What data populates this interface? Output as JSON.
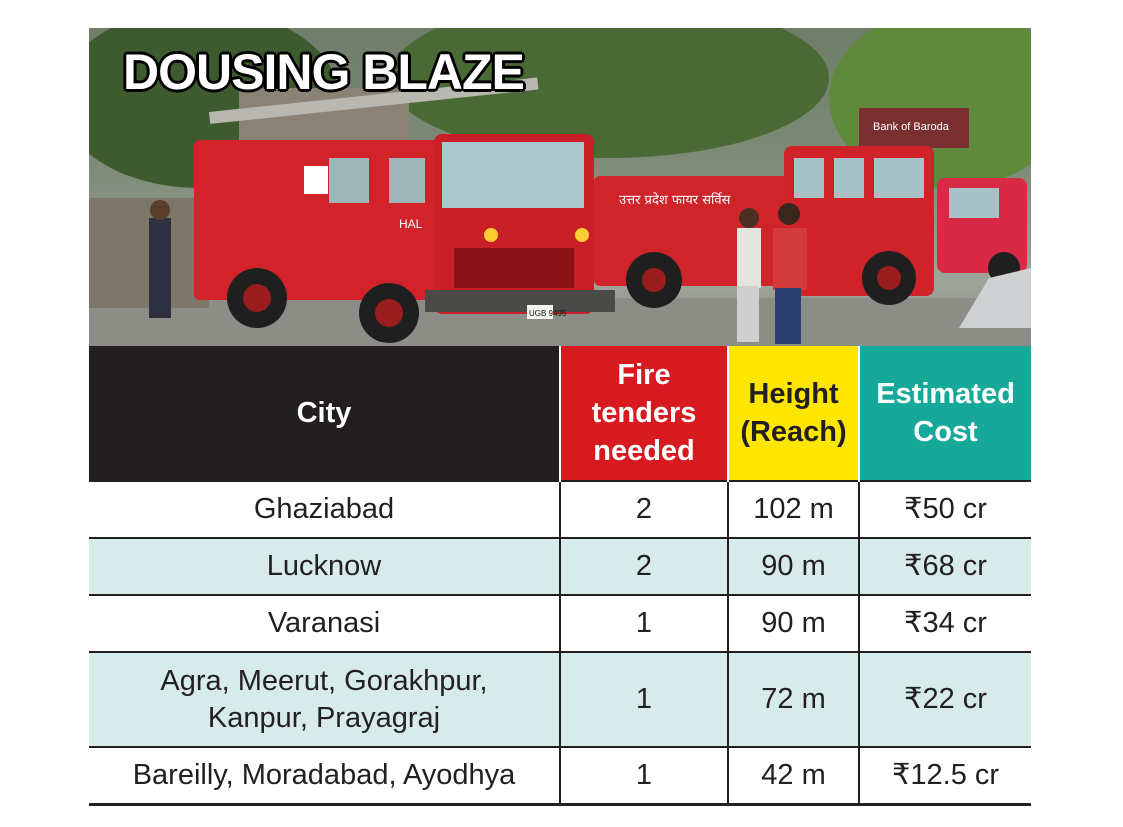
{
  "headline": "DOUSING BLAZE",
  "photo": {
    "truck_marking": "HAL",
    "truck_side_text": "उत्तर प्रदेश फायर सर्विस",
    "sign_text": "Bank of Baroda",
    "plate_text": "UGB 9495"
  },
  "table": {
    "headers": {
      "city": "City",
      "tenders": "Fire tenders needed",
      "height": "Height (Reach)",
      "cost": "Estimated Cost"
    },
    "rows": [
      {
        "city": "Ghaziabad",
        "tenders": "2",
        "height": "102 m",
        "cost": "₹50 cr"
      },
      {
        "city": "Lucknow",
        "tenders": "2",
        "height": "90 m",
        "cost": "₹68 cr"
      },
      {
        "city": "Varanasi",
        "tenders": "1",
        "height": "90 m",
        "cost": "₹34 cr"
      },
      {
        "city": "Agra, Meerut, Gorakhpur, Kanpur, Prayagraj",
        "tenders": "1",
        "height": "72 m",
        "cost": "₹22 cr"
      },
      {
        "city": "Bareilly, Moradabad, Ayodhya",
        "tenders": "1",
        "height": "42 m",
        "cost": "₹12.5 cr"
      }
    ]
  },
  "colors": {
    "header_city": "#231f20",
    "header_tenders": "#d71920",
    "header_height": "#ffe600",
    "header_cost": "#16a99a",
    "row_shade": "#d7ebea"
  }
}
